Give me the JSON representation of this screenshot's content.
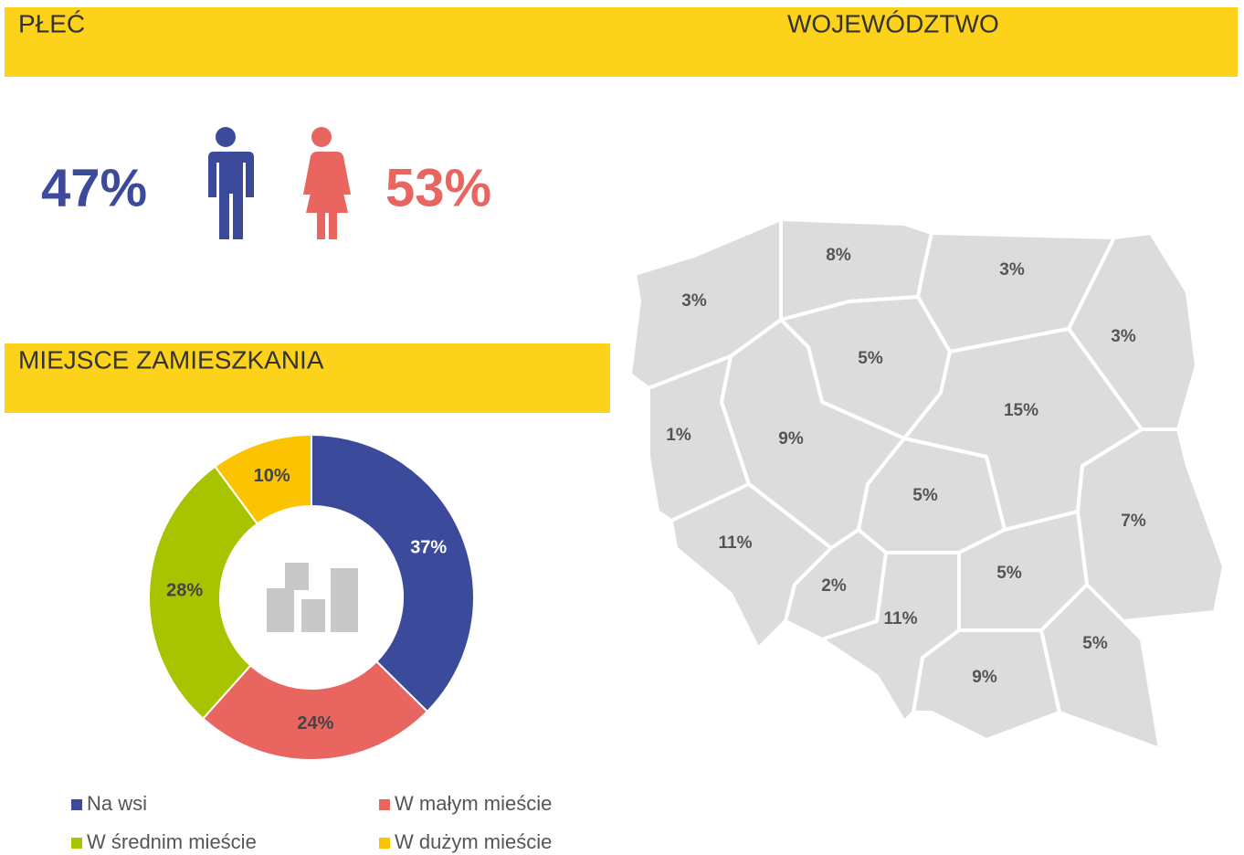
{
  "sections": {
    "gender_title": "PŁEĆ",
    "region_title": "WOJEWÓDZTWO",
    "residence_title": "MIEJSCE ZAMIESZKANIA"
  },
  "gender": {
    "male": {
      "value": 47,
      "label": "47%",
      "color": "#3b4a9b"
    },
    "female": {
      "value": 53,
      "label": "53%",
      "color": "#e8665f"
    }
  },
  "map": {
    "color": "#dcdcdc",
    "regions": [
      {
        "value": 3,
        "label": "3%"
      },
      {
        "value": 8,
        "label": "8%"
      },
      {
        "value": 3,
        "label": "3%"
      },
      {
        "value": 3,
        "label": "3%"
      },
      {
        "value": 5,
        "label": "5%"
      },
      {
        "value": 1,
        "label": "1%"
      },
      {
        "value": 9,
        "label": "9%"
      },
      {
        "value": 15,
        "label": "15%"
      },
      {
        "value": 5,
        "label": "5%"
      },
      {
        "value": 7,
        "label": "7%"
      },
      {
        "value": 11,
        "label": "11%"
      },
      {
        "value": 2,
        "label": "2%"
      },
      {
        "value": 11,
        "label": "11%"
      },
      {
        "value": 5,
        "label": "5%"
      },
      {
        "value": 9,
        "label": "9%"
      },
      {
        "value": 5,
        "label": "5%"
      }
    ]
  },
  "chart_data": {
    "type": "pie",
    "donut": true,
    "categories": [
      "Na wsi",
      "W małym mieście",
      "W średnim mieście",
      "W dużym mieście"
    ],
    "values": [
      37,
      24,
      28,
      10
    ],
    "value_labels": [
      "37%",
      "24%",
      "28%",
      "10%"
    ],
    "colors": [
      "#3b4a9b",
      "#e8665f",
      "#a8c400",
      "#fcc300"
    ],
    "legend": "bottom"
  }
}
